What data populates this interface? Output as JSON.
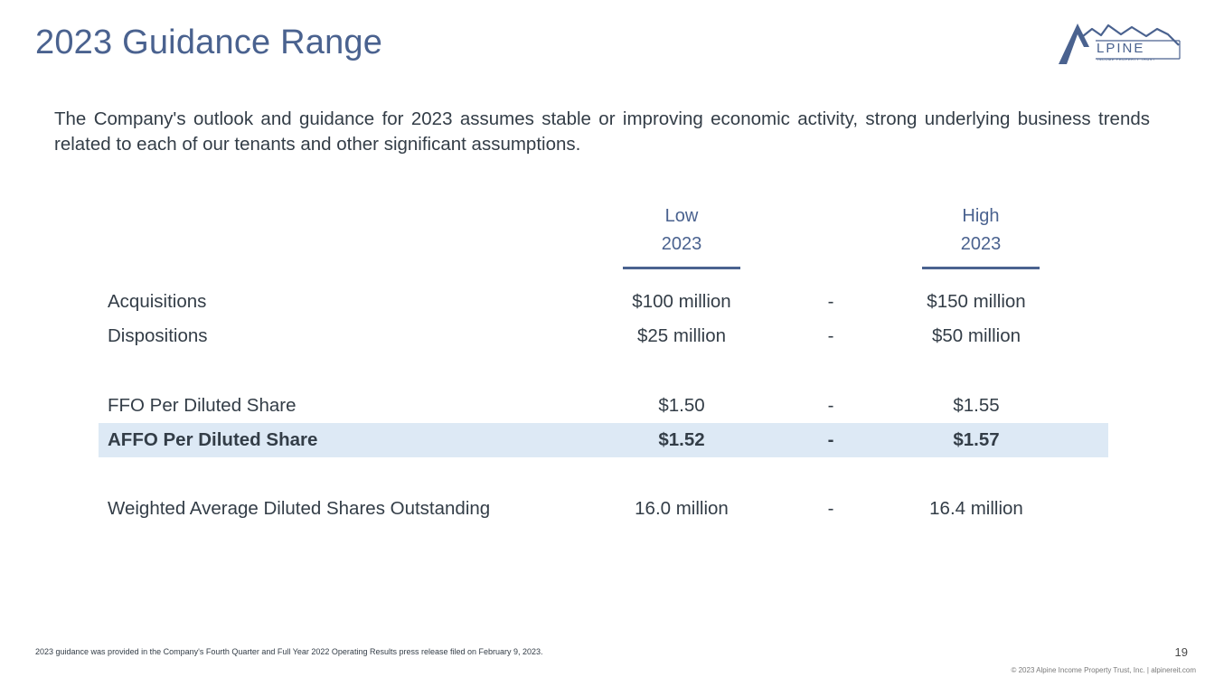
{
  "slide": {
    "title": "2023 Guidance Range",
    "intro": "The Company's outlook and guidance for 2023 assumes stable or improving economic activity, strong underlying business trends related to each of our tenants and other significant assumptions.",
    "logo": {
      "text": "LPINE",
      "subtext": "INCOME PROPERTY TRUST"
    },
    "columns": {
      "low": {
        "line1": "Low",
        "line2": "2023"
      },
      "high": {
        "line1": "High",
        "line2": "2023"
      }
    },
    "rows": [
      {
        "label": "Acquisitions",
        "low": "$100 million",
        "sep": "-",
        "high": "$150 million"
      },
      {
        "label": "Dispositions",
        "low": "$25 million",
        "sep": "-",
        "high": "$50 million"
      },
      {
        "label": "FFO Per Diluted Share",
        "low": "$1.50",
        "sep": "-",
        "high": "$1.55"
      },
      {
        "label": "AFFO Per Diluted Share",
        "low": "$1.52",
        "sep": "-",
        "high": "$1.57"
      },
      {
        "label": "Weighted Average Diluted Shares Outstanding",
        "low": "16.0 million",
        "sep": "-",
        "high": "16.4 million"
      }
    ],
    "footnote": "2023 guidance was provided in the Company's Fourth Quarter and Full Year 2022 Operating Results press release filed on February 9, 2023.",
    "page_number": "19",
    "copyright": "© 2023 Alpine Income Property Trust, Inc.  |  alpinereit.com",
    "colors": {
      "accent": "#4a628f",
      "highlight": "#dde9f5"
    }
  }
}
